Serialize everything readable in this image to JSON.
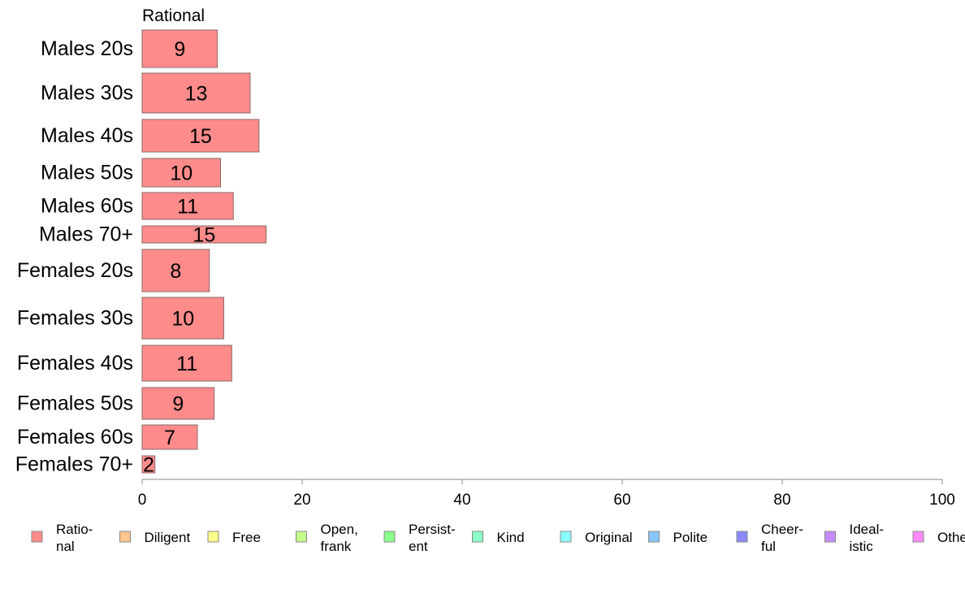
{
  "chart_data": {
    "type": "bar",
    "orientation": "horizontal",
    "series_title": "Rational",
    "categories": [
      "Males 20s",
      "Males 30s",
      "Males 40s",
      "Males 50s",
      "Males 60s",
      "Males 70+",
      "Females 20s",
      "Females 30s",
      "Females 40s",
      "Females 50s",
      "Females 60s",
      "Females 70+"
    ],
    "series": [
      {
        "name": "Rational",
        "values": [
          9.4,
          13.5,
          14.6,
          9.8,
          11.4,
          15.5,
          8.4,
          10.2,
          11.2,
          9.0,
          6.9,
          1.6
        ],
        "labels": [
          "9",
          "13",
          "15",
          "10",
          "11",
          "15",
          "8",
          "10",
          "11",
          "9",
          "7",
          "2"
        ],
        "color": "#ff8b8b"
      }
    ],
    "xlim": [
      0,
      100
    ],
    "x_ticks": [
      "0",
      "20",
      "40",
      "60",
      "80",
      "100"
    ],
    "legend": {
      "placement": "bottom",
      "items": [
        {
          "label": "Ratio-\nnal",
          "color": "#ff8b8b"
        },
        {
          "label": "Diligent",
          "color": "#ffc58b"
        },
        {
          "label": "Free",
          "color": "#ffff8b"
        },
        {
          "label": "Open,\nfrank",
          "color": "#c5ff8b"
        },
        {
          "label": "Persist-\nent",
          "color": "#8bff8b"
        },
        {
          "label": "Kind",
          "color": "#8bffc5"
        },
        {
          "label": "Original",
          "color": "#8bffff"
        },
        {
          "label": "Polite",
          "color": "#8bc5ff"
        },
        {
          "label": "Cheer-\nful",
          "color": "#8b8bff"
        },
        {
          "label": "Ideal-\nistic",
          "color": "#c58bff"
        },
        {
          "label": "Other",
          "color": "#ff8bff"
        }
      ]
    }
  }
}
